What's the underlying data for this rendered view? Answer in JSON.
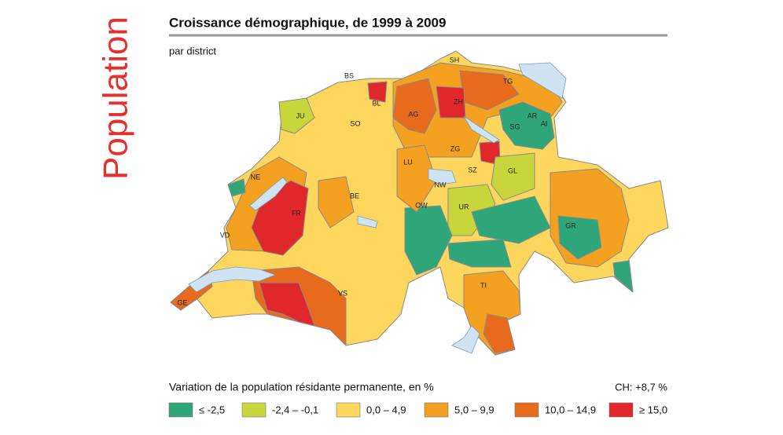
{
  "side_title": "Population",
  "title": "Croissance démographique, de 1999 à 2009",
  "subtitle": "par district",
  "map": {
    "cantons": [
      "BS",
      "SH",
      "TG",
      "ZH",
      "BL",
      "AG",
      "JU",
      "SO",
      "AR",
      "AI",
      "SG",
      "ZG",
      "LU",
      "SZ",
      "NE",
      "GL",
      "NW",
      "BE",
      "OW",
      "UR",
      "FR",
      "VD",
      "GR",
      "TI",
      "VS",
      "GE"
    ]
  },
  "legend": {
    "title": "Variation de la population résidante permanente, en %",
    "total": "CH: +8,7 %",
    "items": [
      {
        "label": "≤ -2,5",
        "color": "#2ea67a"
      },
      {
        "label": "-2,4 – -0,1",
        "color": "#c8d63c"
      },
      {
        "label": "0,0 – 4,9",
        "color": "#fdd65e"
      },
      {
        "label": "5,0 – 9,9",
        "color": "#f4a021"
      },
      {
        "label": "10,0 – 14,9",
        "color": "#e86a1c"
      },
      {
        "label": "≥ 15,0",
        "color": "#e0282c"
      }
    ]
  }
}
